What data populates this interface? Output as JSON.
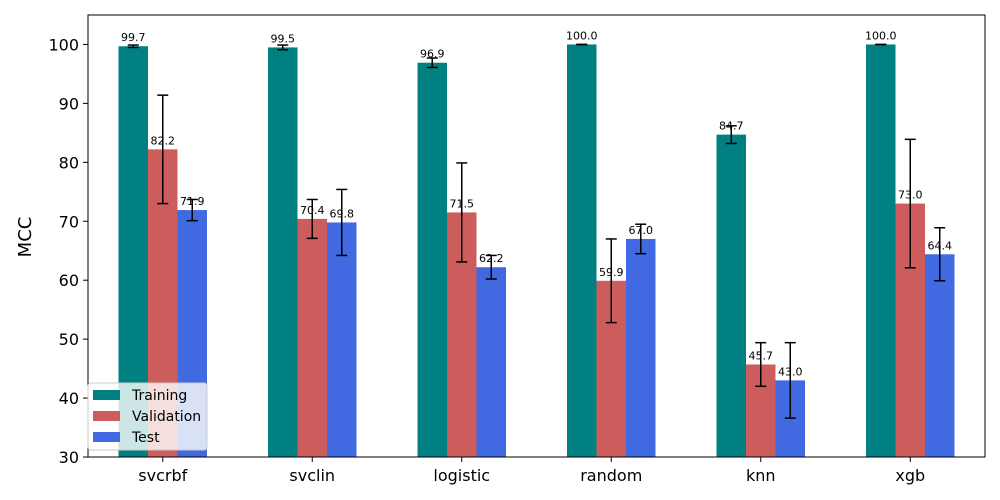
{
  "chart_data": {
    "type": "bar",
    "title": "",
    "xlabel": "",
    "ylabel": "MCC",
    "ylim": [
      30,
      105
    ],
    "yticks": [
      30,
      40,
      50,
      60,
      70,
      80,
      90,
      100
    ],
    "categories": [
      "svcrbf",
      "svclin",
      "logistic",
      "random",
      "knn",
      "xgb"
    ],
    "grid": false,
    "legend_position": "lower-left",
    "series": [
      {
        "name": "Training",
        "color": "#008080",
        "values": [
          99.7,
          99.5,
          96.9,
          100.0,
          84.7,
          100.0
        ],
        "errors": [
          0.2,
          0.4,
          0.8,
          0.0,
          1.5,
          0.0
        ],
        "labels": [
          "99.7",
          "99.5",
          "96.9",
          "100.0",
          "84.7",
          "100.0"
        ]
      },
      {
        "name": "Validation",
        "color": "#CD5C5C",
        "values": [
          82.2,
          70.4,
          71.5,
          59.9,
          45.7,
          73.0
        ],
        "errors": [
          9.2,
          3.3,
          8.4,
          7.1,
          3.7,
          10.9
        ],
        "labels": [
          "82.2",
          "70.4",
          "71.5",
          "59.9",
          "45.7",
          "73.0"
        ]
      },
      {
        "name": "Test",
        "color": "#4169E1",
        "values": [
          71.9,
          69.8,
          62.2,
          67.0,
          43.0,
          64.4
        ],
        "errors": [
          1.8,
          5.6,
          2.0,
          2.5,
          6.4,
          4.5
        ],
        "labels": [
          "71.9",
          "69.8",
          "62.2",
          "67.0",
          "43.0",
          "64.4"
        ]
      }
    ]
  }
}
